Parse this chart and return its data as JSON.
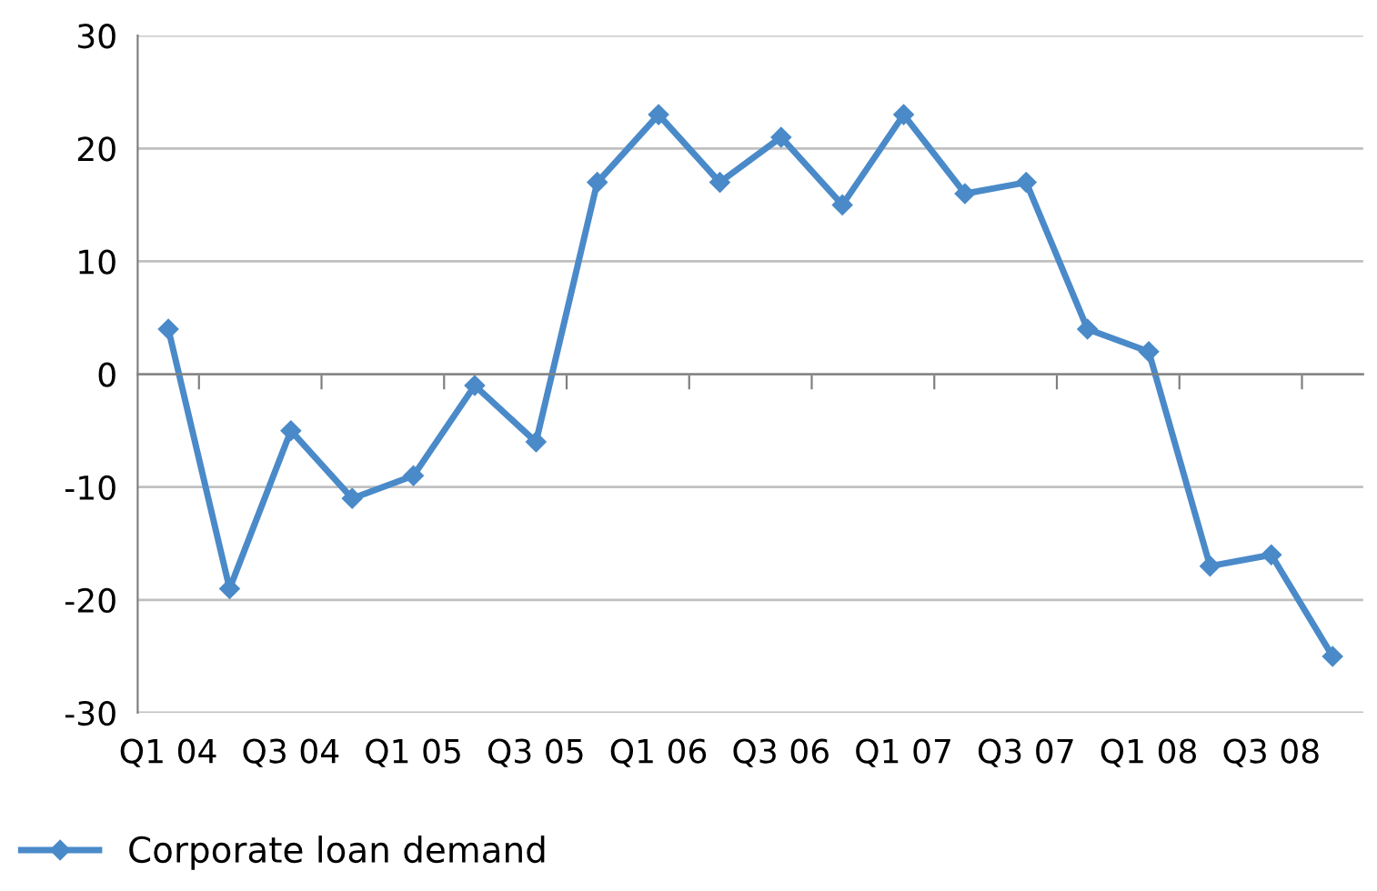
{
  "chart_data": {
    "type": "line",
    "categories": [
      "Q1 04",
      null,
      "Q3 04",
      null,
      "Q1 05",
      null,
      "Q3 05",
      null,
      "Q1 06",
      null,
      "Q3 06",
      null,
      "Q1 07",
      null,
      "Q3 07",
      null,
      "Q1 08",
      null,
      "Q3 08",
      null
    ],
    "series": [
      {
        "name": "Corporate loan demand",
        "color": "#4a8ac9",
        "values": [
          4,
          -19,
          -5,
          -11,
          -9,
          -1,
          -6,
          17,
          23,
          17,
          21,
          15,
          23,
          16,
          17,
          4,
          2,
          -17,
          -16,
          -25
        ]
      }
    ],
    "ylim": [
      -30,
      30
    ],
    "yticks": [
      -30,
      -20,
      -10,
      0,
      10,
      20,
      30
    ],
    "grid": "y",
    "legend": "bottom left",
    "marker": "diamond",
    "line_style": "solid"
  }
}
